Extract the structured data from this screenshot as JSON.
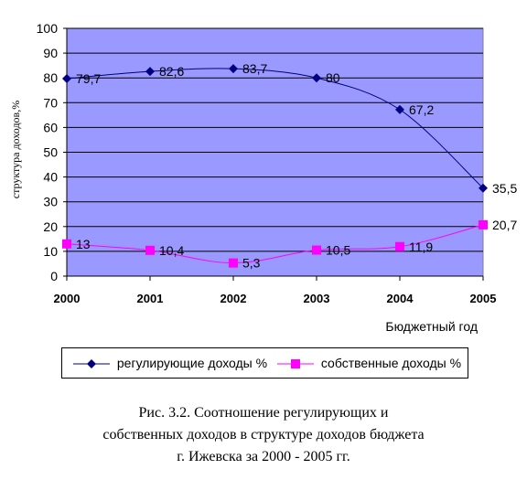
{
  "chart_data": {
    "type": "line",
    "categories": [
      "2000",
      "2001",
      "2002",
      "2003",
      "2004",
      "2005"
    ],
    "series": [
      {
        "name": "регулирующие доходы %",
        "values": [
          79.7,
          82.6,
          83.7,
          80,
          67.2,
          35.5
        ],
        "labels": [
          "79,7",
          "82,6",
          "83,7",
          "80",
          "67,2",
          "35,5"
        ],
        "color": "#000080",
        "marker": "diamond"
      },
      {
        "name": "собственные доходы %",
        "values": [
          13,
          10.4,
          5.3,
          10.5,
          11.9,
          20.7
        ],
        "labels": [
          "13",
          "10,4",
          "5,3",
          "10,5",
          "11,9",
          "20,7"
        ],
        "color": "#ff00ff",
        "marker": "square"
      }
    ],
    "xlabel": "Бюджетный год",
    "ylabel": "структура доходов,%",
    "ylim": [
      0,
      100
    ],
    "yticks": [
      "0",
      "10",
      "20",
      "30",
      "40",
      "50",
      "60",
      "70",
      "80",
      "90",
      "100"
    ],
    "grid": true,
    "plot_background": "#9999ff",
    "legend_position": "bottom"
  },
  "caption": {
    "line1": "Рис. 3.2.  Соотношение регулирующих и",
    "line2": "собственных доходов в структуре доходов бюджета",
    "line3": "г. Ижевска за 2000 - 2005 гг."
  }
}
